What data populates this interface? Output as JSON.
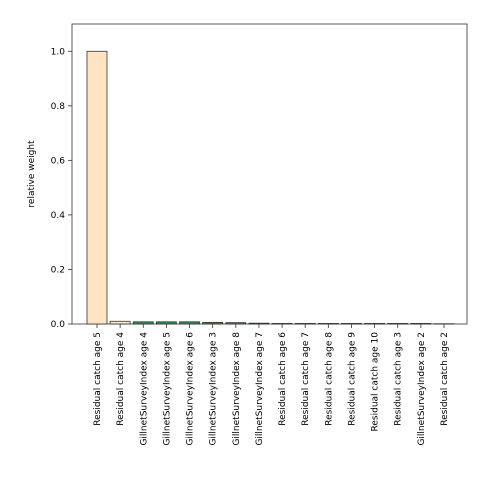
{
  "chart_data": {
    "type": "bar",
    "ylabel": "relative weight",
    "categories": [
      "Residual catch age 5",
      "Residual catch age 4",
      "GillnetSurveyIndex age 4",
      "GillnetSurveyIndex age 5",
      "GillnetSurveyIndex age 6",
      "GillnetSurveyIndex age 3",
      "GillnetSurveyIndex age 8",
      "GillnetSurveyIndex age 7",
      "Residual catch age 6",
      "Residual catch age 7",
      "Residual catch age 8",
      "Residual catch age 9",
      "Residual catch age 10",
      "Residual catch age 3",
      "GillnetSurveyIndex age 2",
      "Residual catch age 2"
    ],
    "values": [
      1.0,
      0.01,
      0.008,
      0.008,
      0.008,
      0.006,
      0.005,
      0.003,
      0.002,
      0.002,
      0.002,
      0.002,
      0.002,
      0.002,
      0.002,
      0.001
    ],
    "colors": [
      "#ffe4c4",
      "#ffe4c4",
      "#2e8b57",
      "#2e8b57",
      "#2e8b57",
      "#2e8b57",
      "#2e8b57",
      "#2e8b57",
      "#ffe4c4",
      "#ffe4c4",
      "#ffe4c4",
      "#ffe4c4",
      "#ffe4c4",
      "#ffe4c4",
      "#2e8b57",
      "#ffe4c4"
    ],
    "ylim": [
      0,
      1.1
    ],
    "yticks": [
      {
        "value": 0,
        "label": "0.0"
      },
      0.2,
      0.4,
      0.6,
      0.8,
      {
        "value": 1,
        "label": "1.0"
      }
    ],
    "grid": false
  }
}
